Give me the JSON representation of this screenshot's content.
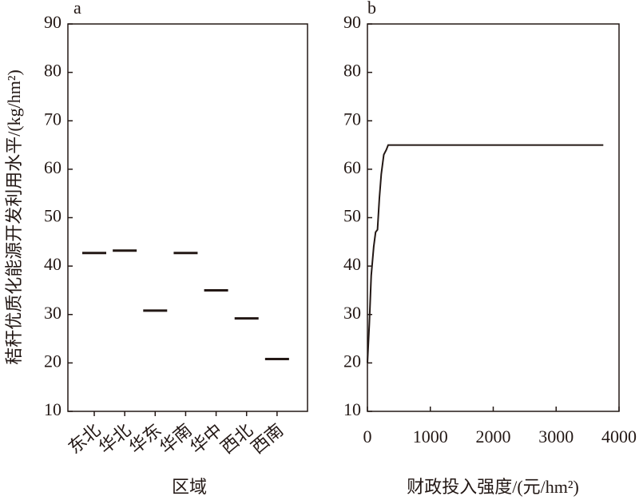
{
  "chart_data": [
    {
      "type": "dash",
      "panel": "a",
      "y_label": "秸秆优质化能源开发利用水平/(kg/hm²)",
      "x_label": "区域",
      "categories": [
        "东北",
        "华北",
        "华东",
        "华南",
        "华中",
        "西北",
        "西南"
      ],
      "values": [
        42.7,
        43.2,
        30.8,
        42.7,
        35.0,
        29.2,
        20.8
      ],
      "color": "#231815",
      "ylim": [
        10,
        90
      ],
      "yticks": [
        10,
        20,
        30,
        40,
        50,
        60,
        70,
        80,
        90
      ],
      "grid": false
    },
    {
      "type": "line",
      "panel": "b",
      "x_label": "财政投入强度/(元/hm²)",
      "x": [
        0,
        30,
        60,
        100,
        130,
        160,
        190,
        220,
        260,
        300,
        330,
        3750
      ],
      "values": [
        20,
        28,
        38,
        44,
        47,
        47.5,
        54,
        59,
        63,
        64,
        65,
        65
      ],
      "color": "#231815",
      "xlim": [
        0,
        4000
      ],
      "xticks": [
        0,
        1000,
        2000,
        3000,
        4000
      ],
      "ylim": [
        10,
        90
      ],
      "yticks": [
        10,
        20,
        30,
        40,
        50,
        60,
        70,
        80,
        90
      ],
      "grid": false
    }
  ]
}
